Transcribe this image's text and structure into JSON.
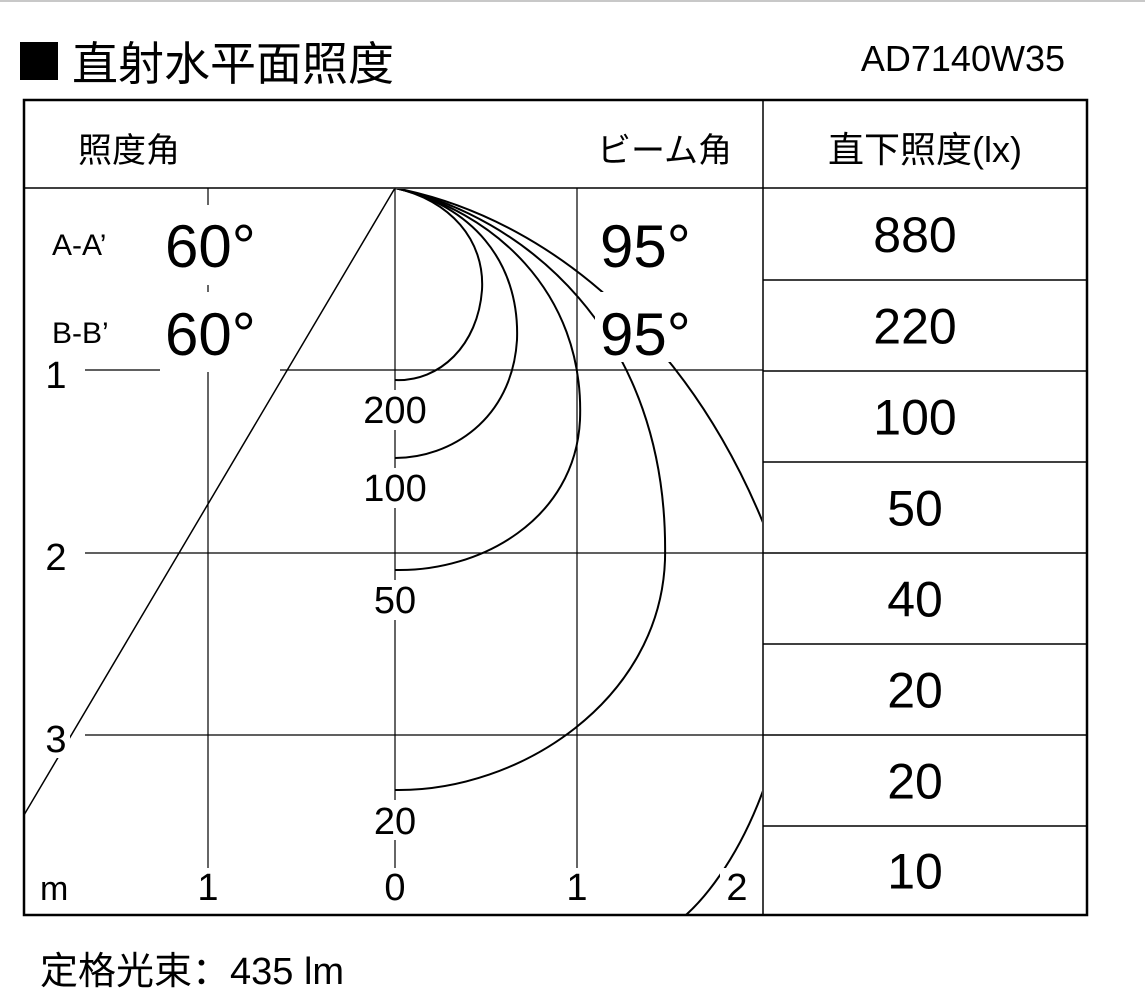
{
  "title": "直射水平面照度",
  "model": "AD7140W35",
  "header": {
    "illuminance_angle": "照度角",
    "beam_angle": "ビーム角",
    "center_illuminance": "直下照度(lx)"
  },
  "angles": [
    {
      "label": "A-A’",
      "illuminance_angle": "60°",
      "beam_angle": "95°"
    },
    {
      "label": "B-B’",
      "illuminance_angle": "60°",
      "beam_angle": "95°"
    }
  ],
  "center_illuminance_values": [
    "880",
    "220",
    "100",
    "50",
    "40",
    "20",
    "20",
    "10"
  ],
  "axis": {
    "unit": "m",
    "x_ticks": [
      "1",
      "0",
      "1",
      "2"
    ],
    "y_ticks": [
      "1",
      "2",
      "3"
    ]
  },
  "contour_labels": [
    "200",
    "100",
    "50",
    "20"
  ],
  "footer": "定格光束：435 lm"
}
